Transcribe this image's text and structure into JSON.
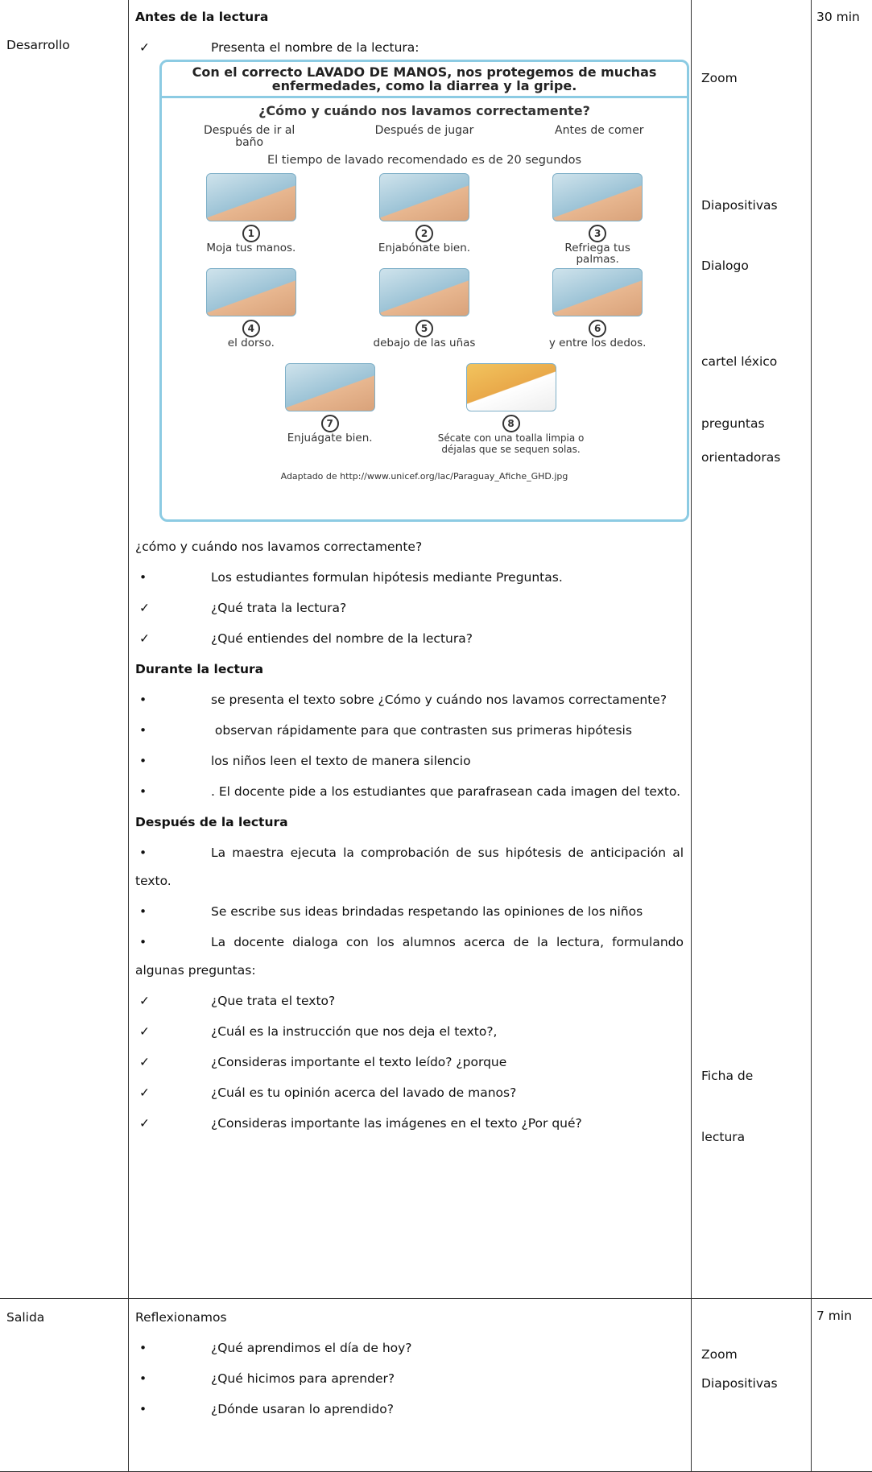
{
  "table": {
    "rows": [
      {
        "stage": "Desarrollo",
        "content": [
          {
            "heading": "Antes de la lectura"
          },
          {
            "marker": "✓",
            "text": "Presenta el nombre de la lectura:"
          },
          {
            "poster": {
              "title": "Con el correcto LAVADO DE MANOS, nos protegemos de muchas enfermedades, como la diarrea y la gripe.",
              "subtitle": "¿Cómo y cuándo nos lavamos correctamente?",
              "moments": [
                "Después de ir al baño",
                "Después de jugar",
                "Antes de comer"
              ],
              "time": "El tiempo de lavado recomendado es de 20 segundos",
              "steps": [
                {
                  "number": "1",
                  "caption": "Moja tus manos."
                },
                {
                  "number": "2",
                  "caption": "Enjabónate bien."
                },
                {
                  "number": "3",
                  "caption": "Refriega tus palmas."
                },
                {
                  "number": "4",
                  "caption": "el dorso."
                },
                {
                  "number": "5",
                  "caption": "debajo de las uñas"
                },
                {
                  "number": "6",
                  "caption": "y entre los dedos."
                },
                {
                  "number": "7",
                  "caption": "Enjuágate bien."
                },
                {
                  "number": "8",
                  "caption": "Sécate con una toalla limpia o déjalas que se sequen solas."
                }
              ],
              "source": "Adaptado de http://www.unicef.org/lac/Paraguay_Afiche_GHD.jpg"
            }
          },
          {
            "text": "¿cómo y cuándo nos lavamos correctamente?"
          },
          {
            "marker": "•",
            "text": "Los estudiantes formulan hipótesis mediante Preguntas."
          },
          {
            "marker": "✓",
            "text": "¿Qué  trata la lectura?"
          },
          {
            "marker": "✓",
            "text": "¿Qué entiendes del nombre de la lectura?"
          },
          {
            "heading": "Durante la lectura"
          },
          {
            "marker": "•",
            "text": "se presenta el texto   sobre ¿Cómo y cuándo nos lavamos correctamente?"
          },
          {
            "marker": "•",
            "text": " observan rápidamente para que contrasten sus primeras hipótesis"
          },
          {
            "marker": "•",
            "text": "los niños leen el texto de manera silencio"
          },
          {
            "marker": "•",
            "text": ". El docente pide a los estudiantes que parafrasean cada imagen del texto."
          },
          {
            "heading": "Después de la lectura"
          },
          {
            "marker": "•",
            "text": "La maestra ejecuta la comprobación de sus hipótesis de anticipación al texto."
          },
          {
            "marker": "•",
            "text": "Se escribe sus ideas brindadas respetando las opiniones de los niños"
          },
          {
            "marker": "•",
            "text": "La docente dialoga con los alumnos acerca de la lectura, formulando algunas preguntas:"
          },
          {
            "marker": "✓",
            "text": "¿Que trata el texto?"
          },
          {
            "marker": "✓",
            "text": "¿Cuál es la instrucción que nos deja el texto?,"
          },
          {
            "marker": "✓",
            "text": "¿Consideras importante el texto leído? ¿porque"
          },
          {
            "marker": "✓",
            "text": "¿Cuál es tu opinión acerca del lavado de manos?"
          },
          {
            "marker": "✓",
            "text": "¿Consideras importante las imágenes en el texto ¿Por qué?"
          }
        ],
        "resources": [
          "Zoom",
          "Diapositivas",
          "Dialogo",
          "cartel léxico",
          "preguntas",
          "orientadoras",
          "Ficha de",
          "lectura"
        ],
        "time": "30 min"
      },
      {
        "stage": "Salida",
        "content": [
          {
            "text": "Reflexionamos"
          },
          {
            "marker": "•",
            "text": "¿Qué aprendimos el día de hoy?"
          },
          {
            "marker": "•",
            "text": "¿Qué hicimos para aprender?"
          },
          {
            "marker": "•",
            "text": "¿Dónde usaran lo aprendido?"
          }
        ],
        "resources": [
          "Zoom",
          "Diapositivas"
        ],
        "time": "7 min"
      }
    ]
  }
}
